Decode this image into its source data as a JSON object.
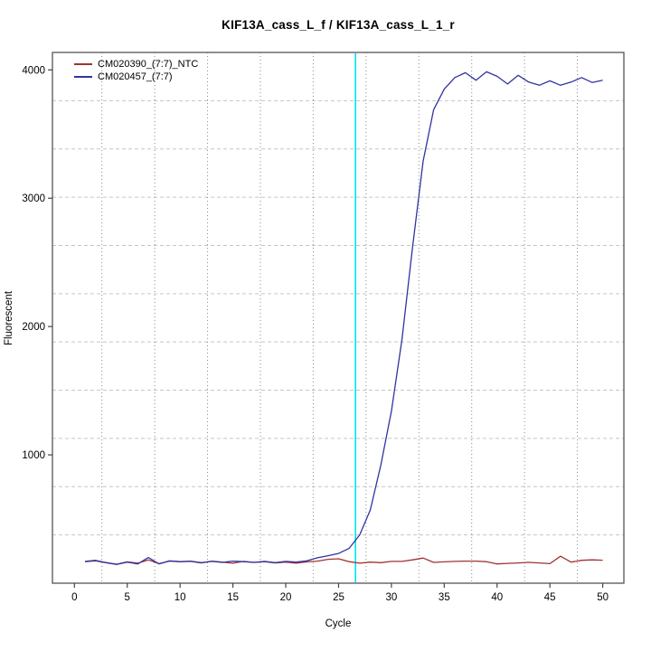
{
  "title": "KIF13A_cass_L_f / KIF13A_cass_L_1_r",
  "axes": {
    "x_label": "Cycle",
    "y_label": "Fluorescent"
  },
  "colors": {
    "ntc_line": "#A03232",
    "sample_line": "#3232A0",
    "threshold_line": "#00E5EE",
    "v_gridline": "#8a8a8a",
    "h_gridline": "#c6c6c6",
    "plot_border": "#555555",
    "tick": "#444444",
    "text": "#000000",
    "background": "#ffffff"
  },
  "chart_data": {
    "type": "line",
    "title": "KIF13A_cass_L_f / KIF13A_cass_L_1_r",
    "xlabel": "Cycle",
    "ylabel": "Fluorescent",
    "xlim": [
      -2.08,
      52
    ],
    "ylim": [
      0,
      4136
    ],
    "x_ticks": [
      0,
      5,
      10,
      15,
      20,
      25,
      30,
      35,
      40,
      45,
      50
    ],
    "y_ticks": [
      1000,
      2000,
      3000,
      4000
    ],
    "legend_position": "top-left",
    "grid": {
      "vertical_x": [
        2.6,
        7.6,
        12.6,
        17.6,
        22.6,
        27.6,
        32.6,
        37.6,
        42.6,
        47.6
      ],
      "horizontal_y": [
        376,
        752,
        1128,
        1504,
        1880,
        2256,
        2632,
        3008,
        3384,
        3760
      ]
    },
    "threshold_line": {
      "x": 26.6,
      "color": "#00E5EE"
    },
    "x": [
      1,
      2,
      3,
      4,
      5,
      6,
      7,
      8,
      9,
      10,
      11,
      12,
      13,
      14,
      15,
      16,
      17,
      18,
      19,
      20,
      21,
      22,
      23,
      24,
      25,
      26,
      27,
      28,
      29,
      30,
      31,
      32,
      33,
      34,
      35,
      36,
      37,
      38,
      39,
      40,
      41,
      42,
      43,
      44,
      45,
      46,
      47,
      48,
      49,
      50
    ],
    "series": [
      {
        "name": "CM020390_(7:7)_NTC",
        "color": "#A03232",
        "values": [
          170,
          178,
          160,
          148,
          166,
          156,
          182,
          152,
          172,
          168,
          170,
          158,
          172,
          164,
          156,
          170,
          162,
          168,
          158,
          164,
          156,
          166,
          172,
          186,
          190,
          168,
          156,
          164,
          160,
          170,
          170,
          182,
          196,
          162,
          166,
          170,
          172,
          172,
          168,
          150,
          154,
          158,
          162,
          158,
          152,
          210,
          164,
          178,
          182,
          179
        ]
      },
      {
        "name": "CM020457_(7:7)",
        "color": "#3232A0",
        "values": [
          168,
          175,
          160,
          146,
          164,
          150,
          200,
          150,
          174,
          168,
          172,
          160,
          170,
          162,
          172,
          168,
          162,
          170,
          160,
          170,
          164,
          174,
          198,
          214,
          232,
          272,
          376,
          570,
          920,
          1340,
          1900,
          2620,
          3290,
          3690,
          3850,
          3940,
          3978,
          3920,
          3985,
          3950,
          3890,
          3958,
          3905,
          3880,
          3915,
          3880,
          3905,
          3940,
          3902,
          3920
        ]
      }
    ]
  }
}
